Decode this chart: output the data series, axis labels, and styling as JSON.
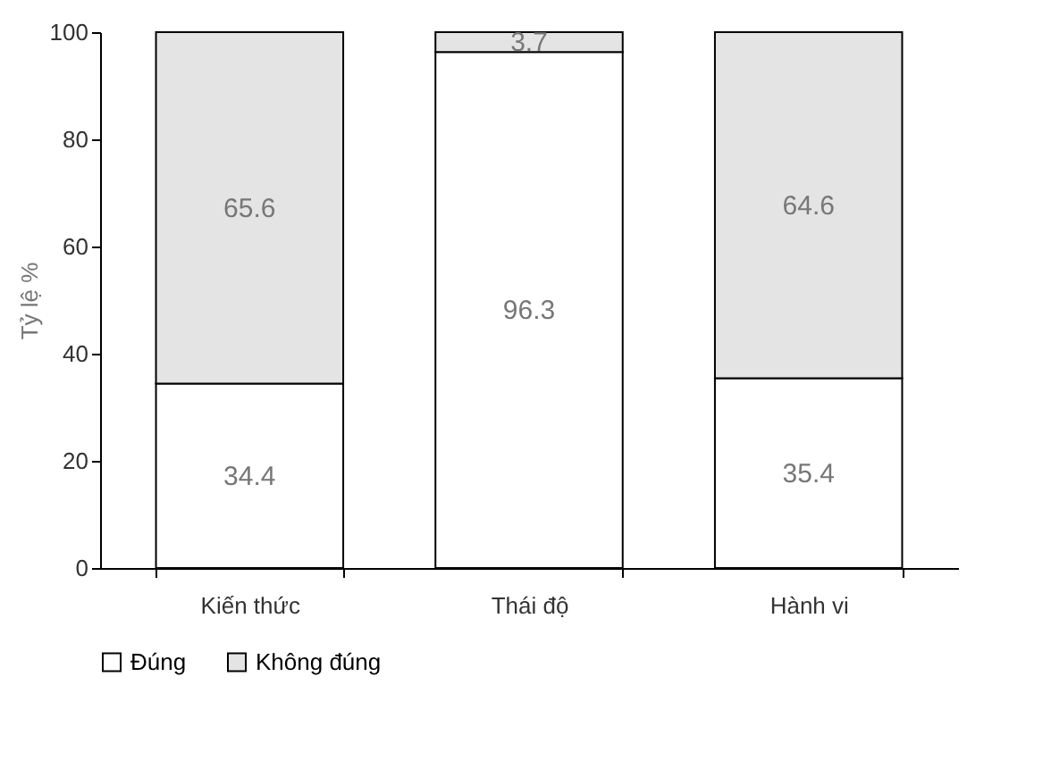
{
  "chart_data": {
    "type": "bar",
    "stacked": true,
    "ylabel": "Tỷ lệ %",
    "categories": [
      "Kiến thức",
      "Thái độ",
      "Hành vi"
    ],
    "series": [
      {
        "name": "Đúng",
        "color": "#ffffff",
        "values": [
          34.4,
          96.3,
          35.4
        ]
      },
      {
        "name": "Không đúng",
        "color": "#e4e4e4",
        "values": [
          65.6,
          3.7,
          64.6
        ]
      }
    ],
    "ylim": [
      0,
      100
    ],
    "yticks": [
      0,
      20,
      40,
      60,
      80,
      100
    ],
    "grid": false,
    "legend": "bottom",
    "data_labels": true
  }
}
